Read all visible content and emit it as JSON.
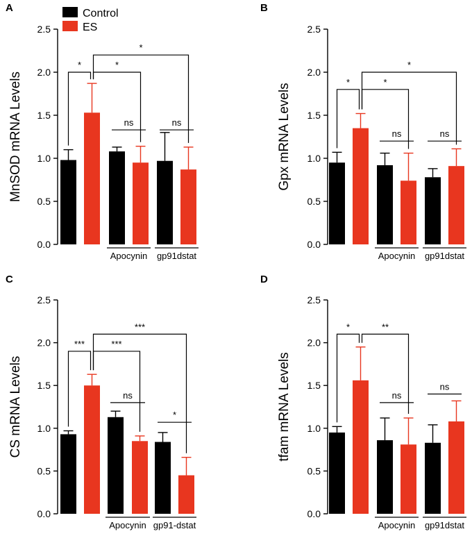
{
  "colors": {
    "control": "#000000",
    "es": "#e8361f",
    "axis": "#000000"
  },
  "legend": [
    {
      "label": "Control",
      "color": "#000000"
    },
    {
      "label": "ES",
      "color": "#e8361f"
    }
  ],
  "chart_data": [
    {
      "type": "bar",
      "panel": "A",
      "ylabel": "MnSOD mRNA Levels",
      "ylim": [
        0,
        2.5
      ],
      "yticks": [
        "0.0",
        "0.5",
        "1.0",
        "1.5",
        "2.0",
        "2.5"
      ],
      "bars": [
        {
          "series": "Control",
          "value": 0.98,
          "error": 0.12
        },
        {
          "series": "ES",
          "value": 1.53,
          "error": 0.34
        },
        {
          "series": "Control",
          "value": 1.08,
          "error": 0.05
        },
        {
          "series": "ES",
          "value": 0.95,
          "error": 0.19
        },
        {
          "series": "Control",
          "value": 0.97,
          "error": 0.33
        },
        {
          "series": "ES",
          "value": 0.87,
          "error": 0.26
        }
      ],
      "groups": [
        {
          "label": "Apocynin",
          "bars": [
            2,
            3
          ]
        },
        {
          "label": "gp91dstat",
          "bars": [
            4,
            5
          ]
        }
      ],
      "comparisons": [
        {
          "from": 0,
          "to": 1,
          "label": "*",
          "y": 2.0,
          "style": "bracket"
        },
        {
          "from": 1,
          "to": 3,
          "label": "*",
          "y": 2.0,
          "style": "bracket"
        },
        {
          "from": 1,
          "to": 5,
          "label": "*",
          "y": 2.2,
          "style": "bracket"
        },
        {
          "from": 2,
          "to": 3,
          "label": "ns",
          "y": 1.33,
          "style": "line"
        },
        {
          "from": 4,
          "to": 5,
          "label": "ns",
          "y": 1.33,
          "style": "line"
        }
      ]
    },
    {
      "type": "bar",
      "panel": "B",
      "ylabel": "Gpx mRNA Levels",
      "ylim": [
        0,
        2.5
      ],
      "yticks": [
        "0.0",
        "0.5",
        "1.0",
        "1.5",
        "2.0",
        "2.5"
      ],
      "bars": [
        {
          "series": "Control",
          "value": 0.95,
          "error": 0.12
        },
        {
          "series": "ES",
          "value": 1.35,
          "error": 0.17
        },
        {
          "series": "Control",
          "value": 0.92,
          "error": 0.14
        },
        {
          "series": "ES",
          "value": 0.74,
          "error": 0.32
        },
        {
          "series": "Control",
          "value": 0.78,
          "error": 0.1
        },
        {
          "series": "ES",
          "value": 0.91,
          "error": 0.2
        }
      ],
      "groups": [
        {
          "label": "Apocynin",
          "bars": [
            2,
            3
          ]
        },
        {
          "label": "gp91dstat",
          "bars": [
            4,
            5
          ]
        }
      ],
      "comparisons": [
        {
          "from": 0,
          "to": 1,
          "label": "*",
          "y": 1.8,
          "style": "bracket"
        },
        {
          "from": 1,
          "to": 3,
          "label": "*",
          "y": 1.8,
          "style": "bracket"
        },
        {
          "from": 1,
          "to": 5,
          "label": "*",
          "y": 2.0,
          "style": "bracket"
        },
        {
          "from": 2,
          "to": 3,
          "label": "ns",
          "y": 1.2,
          "style": "line"
        },
        {
          "from": 4,
          "to": 5,
          "label": "ns",
          "y": 1.2,
          "style": "line"
        }
      ]
    },
    {
      "type": "bar",
      "panel": "C",
      "ylabel": "CS mRNA Levels",
      "ylim": [
        0,
        2.5
      ],
      "yticks": [
        "0.0",
        "0.5",
        "1.0",
        "1.5",
        "2.0",
        "2.5"
      ],
      "bars": [
        {
          "series": "Control",
          "value": 0.93,
          "error": 0.04
        },
        {
          "series": "ES",
          "value": 1.5,
          "error": 0.13
        },
        {
          "series": "Control",
          "value": 1.13,
          "error": 0.07
        },
        {
          "series": "ES",
          "value": 0.85,
          "error": 0.06
        },
        {
          "series": "Control",
          "value": 0.84,
          "error": 0.11
        },
        {
          "series": "ES",
          "value": 0.45,
          "error": 0.21
        }
      ],
      "groups": [
        {
          "label": "Apocynin",
          "bars": [
            2,
            3
          ]
        },
        {
          "label": "gp91-dstat",
          "bars": [
            4,
            5
          ]
        }
      ],
      "comparisons": [
        {
          "from": 0,
          "to": 1,
          "label": "***",
          "y": 1.9,
          "style": "bracket"
        },
        {
          "from": 1,
          "to": 3,
          "label": "***",
          "y": 1.9,
          "style": "bracket"
        },
        {
          "from": 1,
          "to": 5,
          "label": "***",
          "y": 2.1,
          "style": "bracket"
        },
        {
          "from": 2,
          "to": 3,
          "label": "ns",
          "y": 1.3,
          "style": "line"
        },
        {
          "from": 4,
          "to": 5,
          "label": "*",
          "y": 1.07,
          "style": "line"
        }
      ]
    },
    {
      "type": "bar",
      "panel": "D",
      "ylabel": "tfam mRNA Levels",
      "ylim": [
        0,
        2.5
      ],
      "yticks": [
        "0.0",
        "0.5",
        "1.0",
        "1.5",
        "2.0",
        "2.5"
      ],
      "bars": [
        {
          "series": "Control",
          "value": 0.95,
          "error": 0.07
        },
        {
          "series": "ES",
          "value": 1.56,
          "error": 0.39
        },
        {
          "series": "Control",
          "value": 0.86,
          "error": 0.26
        },
        {
          "series": "ES",
          "value": 0.81,
          "error": 0.31
        },
        {
          "series": "Control",
          "value": 0.83,
          "error": 0.21
        },
        {
          "series": "ES",
          "value": 1.08,
          "error": 0.24
        }
      ],
      "groups": [
        {
          "label": "Apocynin",
          "bars": [
            2,
            3
          ]
        },
        {
          "label": "gp91dstat",
          "bars": [
            4,
            5
          ]
        }
      ],
      "comparisons": [
        {
          "from": 0,
          "to": 1,
          "label": "*",
          "y": 2.1,
          "style": "bracket"
        },
        {
          "from": 1,
          "to": 3,
          "label": "**",
          "y": 2.1,
          "style": "bracket"
        },
        {
          "from": 2,
          "to": 3,
          "label": "ns",
          "y": 1.3,
          "style": "line"
        },
        {
          "from": 4,
          "to": 5,
          "label": "ns",
          "y": 1.4,
          "style": "line"
        }
      ]
    }
  ]
}
